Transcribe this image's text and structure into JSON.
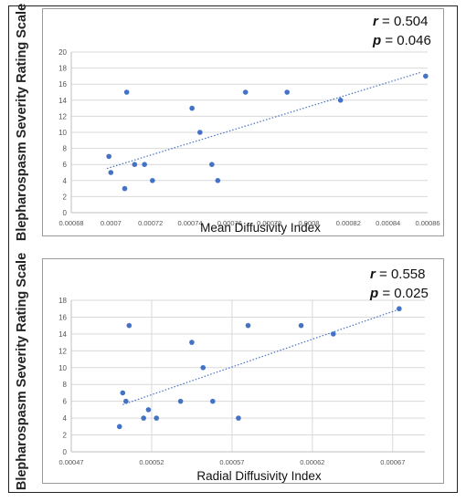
{
  "y_axis_label": "Blepharospasm Severity Rating Scale",
  "chart_data": [
    {
      "type": "scatter",
      "xlabel": "Mean Diffusivity Index",
      "ylabel": "Blepharospasm Severity Rating Scale",
      "xlim": [
        0.00068,
        0.00086
      ],
      "ylim": [
        0,
        20
      ],
      "x_ticks": [
        "0.00068",
        "0.0007",
        "0.00072",
        "0.00074",
        "0.00076",
        "0.00078",
        "0.0008",
        "0.00082",
        "0.00084",
        "0.00086"
      ],
      "y_ticks": [
        "0",
        "2",
        "4",
        "6",
        "8",
        "10",
        "12",
        "14",
        "16",
        "18",
        "20"
      ],
      "grid": "horizontal",
      "points": [
        {
          "x": 0.000699,
          "y": 7
        },
        {
          "x": 0.0007,
          "y": 5
        },
        {
          "x": 0.000707,
          "y": 3
        },
        {
          "x": 0.000708,
          "y": 15
        },
        {
          "x": 0.000712,
          "y": 6
        },
        {
          "x": 0.000717,
          "y": 6
        },
        {
          "x": 0.000721,
          "y": 4
        },
        {
          "x": 0.000741,
          "y": 13
        },
        {
          "x": 0.000745,
          "y": 10
        },
        {
          "x": 0.000751,
          "y": 6
        },
        {
          "x": 0.000754,
          "y": 4
        },
        {
          "x": 0.000768,
          "y": 15
        },
        {
          "x": 0.000789,
          "y": 15
        },
        {
          "x": 0.000816,
          "y": 14
        },
        {
          "x": 0.000859,
          "y": 17
        }
      ],
      "trendline": {
        "x": [
          0.000698,
          0.000857
        ],
        "y": [
          5.5,
          17.5
        ],
        "style": "dotted"
      },
      "r_label": "r",
      "r_value": "= 0.504",
      "p_label": "p",
      "p_value": "= 0.046",
      "color": "#4472c4"
    },
    {
      "type": "scatter",
      "xlabel": "Radial Diffusivity Index",
      "ylabel": "Blepharospasm Severity Rating Scale",
      "xlim": [
        0.00047,
        0.00069
      ],
      "ylim": [
        0,
        18
      ],
      "x_ticks": [
        "0.00047",
        "0.00052",
        "0.00057",
        "0.00062",
        "0.00067"
      ],
      "y_ticks": [
        "0",
        "2",
        "4",
        "6",
        "8",
        "10",
        "12",
        "14",
        "16",
        "18"
      ],
      "grid": "both",
      "points": [
        {
          "x": 0.0005,
          "y": 3
        },
        {
          "x": 0.000502,
          "y": 7
        },
        {
          "x": 0.000504,
          "y": 6
        },
        {
          "x": 0.000506,
          "y": 15
        },
        {
          "x": 0.000515,
          "y": 4
        },
        {
          "x": 0.000518,
          "y": 5
        },
        {
          "x": 0.000523,
          "y": 4
        },
        {
          "x": 0.000538,
          "y": 6
        },
        {
          "x": 0.000545,
          "y": 13
        },
        {
          "x": 0.000552,
          "y": 10
        },
        {
          "x": 0.000558,
          "y": 6
        },
        {
          "x": 0.000574,
          "y": 4
        },
        {
          "x": 0.00058,
          "y": 15
        },
        {
          "x": 0.000613,
          "y": 15
        },
        {
          "x": 0.000633,
          "y": 14
        },
        {
          "x": 0.000674,
          "y": 17
        }
      ],
      "trendline": {
        "x": [
          0.000502,
          0.000672
        ],
        "y": [
          5.6,
          16.8
        ],
        "style": "dotted"
      },
      "r_label": "r",
      "r_value": "= 0.558",
      "p_label": "p",
      "p_value": "= 0.025",
      "color": "#4472c4"
    }
  ]
}
